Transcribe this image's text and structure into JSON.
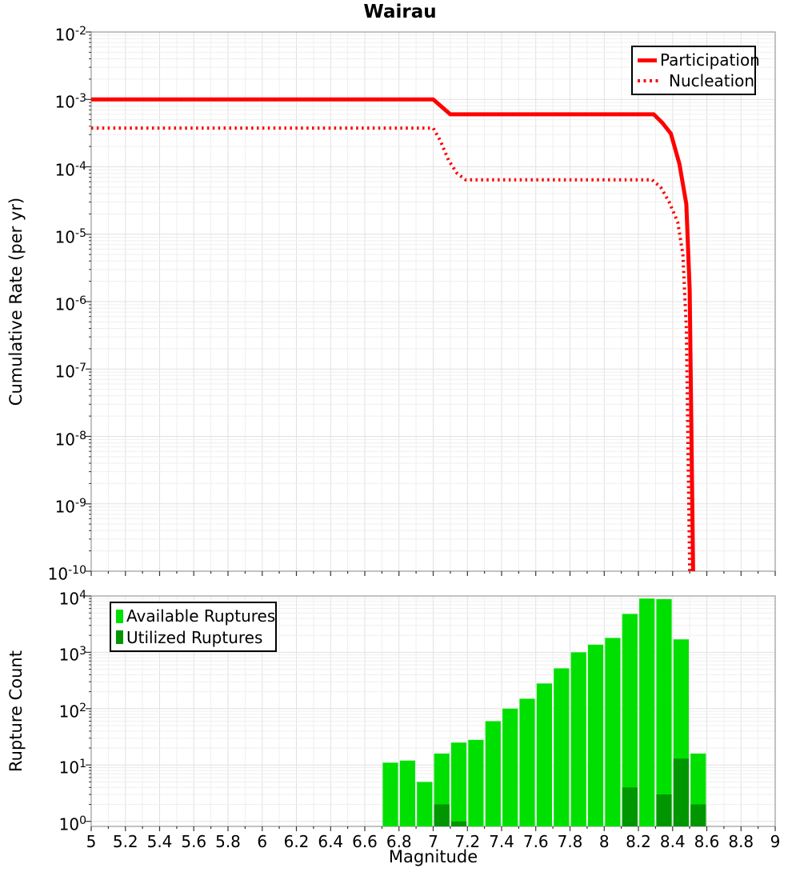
{
  "chart_data": [
    {
      "type": "line",
      "title": "Wairau",
      "ylabel": "Cumulative Rate (per yr)",
      "xlim": [
        5,
        9
      ],
      "ylog_range": [
        -10,
        -2
      ],
      "ytick_exponents": [
        -2,
        -3,
        -4,
        -5,
        -6,
        -7,
        -8,
        -9,
        -10
      ],
      "grid": true,
      "legend_position": "top-right",
      "series": [
        {
          "name": "Participation",
          "style": "solid",
          "color": "#ff0000",
          "points": [
            [
              5.0,
              0.001
            ],
            [
              7.0,
              0.001
            ],
            [
              7.1,
              0.0006
            ],
            [
              8.29,
              0.0006
            ],
            [
              8.34,
              0.00045
            ],
            [
              8.39,
              0.00031
            ],
            [
              8.44,
              0.00011
            ],
            [
              8.48,
              2.8e-05
            ],
            [
              8.5,
              1.5e-06
            ],
            [
              8.52,
              1e-10
            ]
          ]
        },
        {
          "name": "Nucleation",
          "style": "dotted",
          "color": "#ff0000",
          "points": [
            [
              5.0,
              0.000375
            ],
            [
              7.0,
              0.000375
            ],
            [
              7.04,
              0.00025
            ],
            [
              7.09,
              0.000125
            ],
            [
              7.14,
              8e-05
            ],
            [
              7.19,
              6.4e-05
            ],
            [
              8.28,
              6.4e-05
            ],
            [
              8.33,
              5e-05
            ],
            [
              8.38,
              3e-05
            ],
            [
              8.43,
              1.5e-05
            ],
            [
              8.46,
              5e-06
            ],
            [
              8.48,
              4e-07
            ],
            [
              8.5,
              1e-10
            ]
          ]
        }
      ]
    },
    {
      "type": "bar",
      "ylabel": "Rupture Count",
      "xlabel": "Magnitude",
      "xlim": [
        5,
        9
      ],
      "ylog_range": [
        -0.09,
        4
      ],
      "ytick_exponents": [
        4,
        3,
        2,
        1,
        0
      ],
      "grid": true,
      "legend_position": "top-left",
      "bar_width": 0.09,
      "categories": [
        6.75,
        6.85,
        6.95,
        7.05,
        7.15,
        7.25,
        7.35,
        7.45,
        7.55,
        7.65,
        7.75,
        7.85,
        7.95,
        8.05,
        8.15,
        8.25,
        8.35,
        8.45,
        8.55
      ],
      "series": [
        {
          "name": "Available Ruptures",
          "color": "#00e000",
          "values": [
            11,
            12,
            5,
            16,
            25,
            28,
            60,
            100,
            150,
            280,
            520,
            1000,
            1370,
            1800,
            4800,
            9000,
            8800,
            1700,
            16
          ]
        },
        {
          "name": "Utilized Ruptures",
          "color": "#009600",
          "values": [
            0,
            0,
            0,
            2,
            1,
            0,
            0,
            0,
            0,
            0,
            0,
            0,
            0,
            0,
            4,
            0,
            3,
            13,
            2
          ]
        }
      ]
    }
  ],
  "xlabel": "Magnitude",
  "x_tick_labels": [
    "5",
    "5.2",
    "5.4",
    "5.6",
    "5.8",
    "6",
    "6.2",
    "6.4",
    "6.6",
    "6.8",
    "7",
    "7.2",
    "7.4",
    "7.6",
    "7.8",
    "8",
    "8.2",
    "8.4",
    "8.6",
    "8.8",
    "9"
  ],
  "colors": {
    "line_red": "#ff0000",
    "available_green": "#00e000",
    "utilized_green": "#009600",
    "grid_minor": "#efefef",
    "grid_major": "#e1e1e1",
    "frame": "#9a9a9a",
    "tick": "#333333"
  }
}
